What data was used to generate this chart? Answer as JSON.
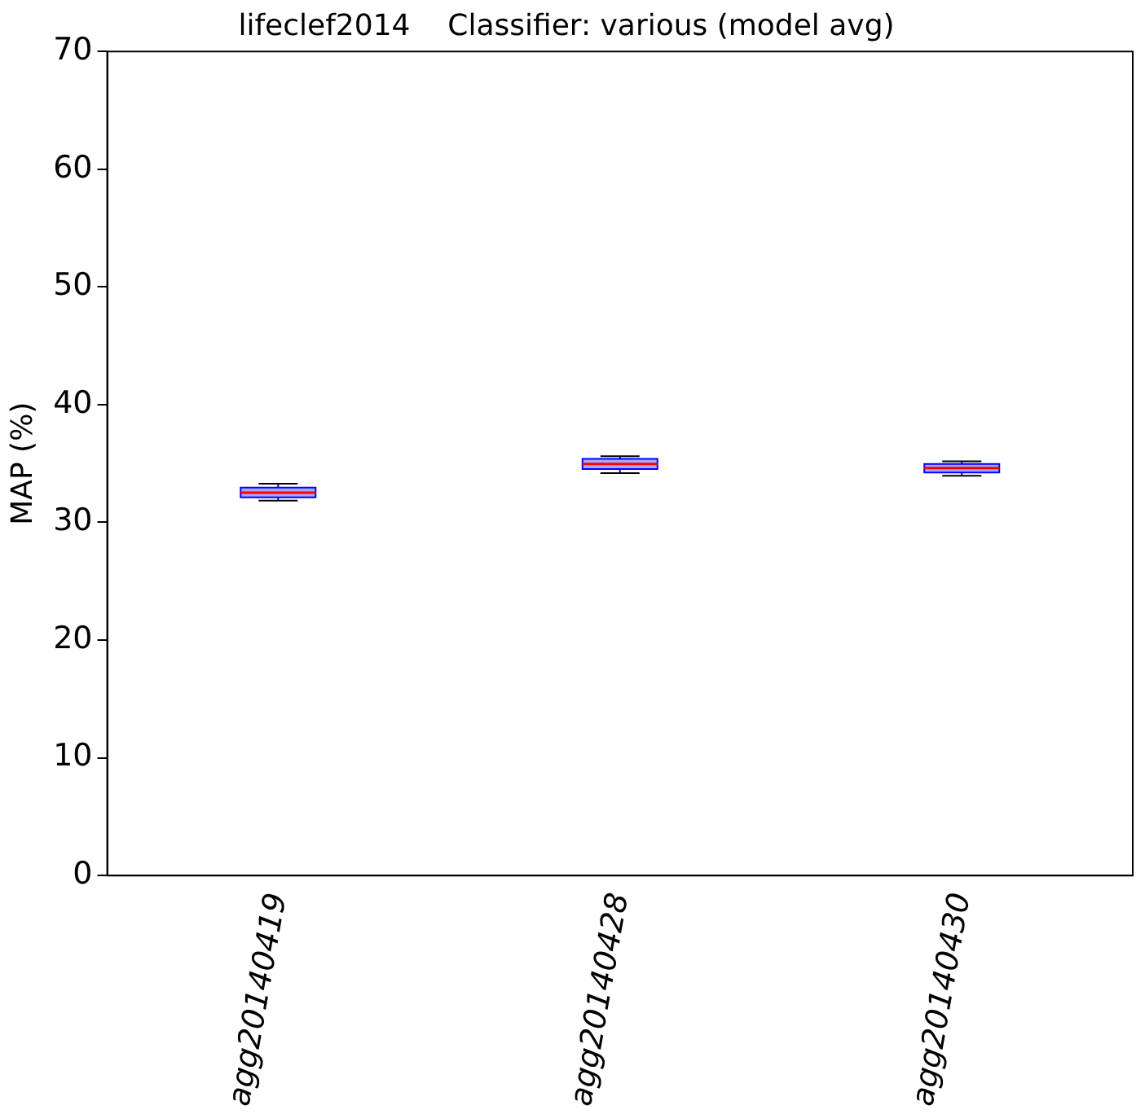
{
  "chart_data": {
    "type": "box",
    "title": "lifeclef2014    Classifier: various (model avg)",
    "ylabel": "MAP (%)",
    "categories": [
      "agg20140419",
      "agg20140428",
      "agg20140430"
    ],
    "color": "#0000ff",
    "boxes": [
      {
        "low": 31.85,
        "q1": 32.13,
        "median": 32.52,
        "q3": 32.95,
        "high": 33.28
      },
      {
        "low": 34.19,
        "q1": 34.53,
        "median": 34.96,
        "q3": 35.39,
        "high": 35.62
      },
      {
        "low": 33.95,
        "q1": 34.24,
        "median": 34.62,
        "q3": 34.96,
        "high": 35.19
      }
    ],
    "ylim": [
      0,
      70
    ],
    "yticks": [
      0,
      10,
      20,
      30,
      40,
      50,
      60,
      70
    ],
    "grid": false,
    "legend": false
  }
}
